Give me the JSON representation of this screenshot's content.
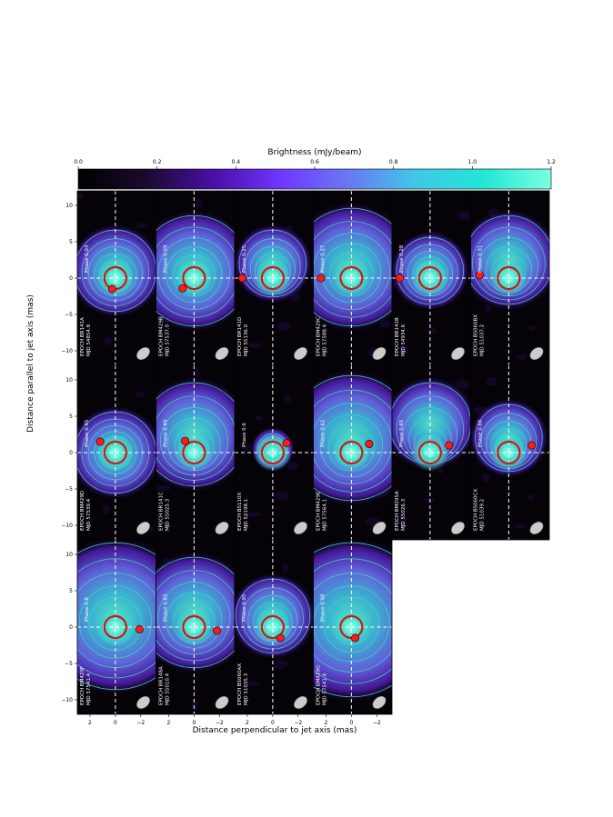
{
  "colorbar": {
    "label": "Brightness (mJy/beam)",
    "ticks": [
      "0.0",
      "0.2",
      "0.4",
      "0.6",
      "0.8",
      "1.0",
      "1.2"
    ],
    "colors": [
      "#000000",
      "#1a0a2e",
      "#4a0ea6",
      "#6f37ff",
      "#6a78f2",
      "#40c8e8",
      "#22e6d6",
      "#7cffe0"
    ]
  },
  "chart_data": {
    "type": "heatmap",
    "xlabel": "Distance perpendicular to jet axis (mas)",
    "ylabel": "Distance parallel to jet axis (mas)",
    "xlim": [
      3,
      -3.2
    ],
    "ylim": [
      -12,
      12
    ],
    "x_ticks": [
      "2",
      "0",
      "−2"
    ],
    "y_ticks": [
      "10",
      "5",
      "0",
      "−5",
      "−10"
    ],
    "colormap_range": [
      0.0,
      1.2
    ],
    "panels": [
      {
        "phase": "Phase 0.03",
        "epoch": "EPOCH BR141A",
        "mjd": "MJD 54854.8",
        "marker": [
          0.25,
          -1.5
        ]
      },
      {
        "phase": "Phase 0.09",
        "epoch": "EPOCH BM429B",
        "mjd": "MJD 57537.0",
        "marker": [
          0.9,
          -1.4
        ]
      },
      {
        "phase": "Phase 0.25",
        "epoch": "EPOCH BR141D",
        "mjd": "MJD 55136.0",
        "marker": [
          2.4,
          0.0
        ]
      },
      {
        "phase": "Phase 0.27",
        "epoch": "EPOCH BM429C",
        "mjd": "MJD 57588.4",
        "marker": [
          2.4,
          0.0
        ]
      },
      {
        "phase": "Phase 0.28",
        "epoch": "EPOCH BR141B",
        "mjd": "MJD 54934.6",
        "marker": [
          2.4,
          0.0
        ]
      },
      {
        "phase": "Phase 0.31",
        "epoch": "EPOCH BS060BX",
        "mjd": "MJD 51037.2",
        "marker": [
          2.3,
          0.4
        ]
      },
      {
        "phase": "Phase 0.45",
        "epoch": "EPOCH BM429D",
        "mjd": "MJD 57539.4",
        "marker": [
          1.2,
          1.5
        ]
      },
      {
        "phase": "Phase 0.49",
        "epoch": "EPOCH BR141C",
        "mjd": "MJD 55025.3",
        "marker": [
          0.7,
          1.6
        ]
      },
      {
        "phase": "Phase 0.6",
        "epoch": "EPOCH BS110X",
        "mjd": "MJD 52198.1",
        "marker": [
          -1.1,
          1.3
        ]
      },
      {
        "phase": "Phase 0.62",
        "epoch": "EPOCH BM429E",
        "mjd": "MJD 57564.1",
        "marker": [
          -1.4,
          1.2
        ]
      },
      {
        "phase": "Phase 0.65",
        "epoch": "EPOCH BM295A",
        "mjd": "MJD 55026.3",
        "marker": [
          -1.5,
          1.0
        ]
      },
      {
        "phase": "Phase 0.66",
        "epoch": "EPOCH BS060CX",
        "mjd": "MJD 51039.2",
        "marker": [
          -1.8,
          1.0
        ]
      },
      {
        "phase": "Phase 0.8",
        "epoch": "EPOCH BM429F",
        "mjd": "MJD 57541.4",
        "marker": [
          -1.9,
          -0.3
        ]
      },
      {
        "phase": "Phase 0.83",
        "epoch": "EPOCH BR148A",
        "mjd": "MJD 55010.4",
        "marker": [
          -1.8,
          -0.5
        ]
      },
      {
        "phase": "Phase 0.95",
        "epoch": "EPOCH BS060AX",
        "mjd": "MJD 51035.3",
        "marker": [
          -0.6,
          -1.5
        ]
      },
      {
        "phase": "Phase 0.98",
        "epoch": "EPOCH BM429G",
        "mjd": "MJD 57541.4",
        "marker": [
          -0.3,
          -1.5
        ]
      }
    ],
    "colors": {
      "ellipse": "#e01010",
      "marker": "#ff1a1a",
      "contour": "#40d6c0",
      "axis_line": "#ffffff",
      "beam": "#cccccc"
    }
  }
}
